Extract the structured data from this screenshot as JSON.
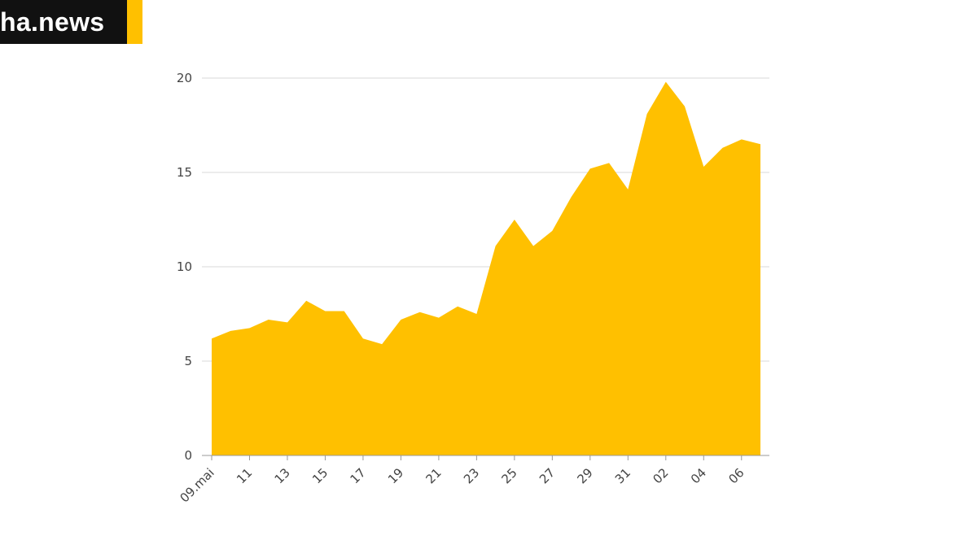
{
  "brand": {
    "text": "ha.news",
    "colors": {
      "box": "#111111",
      "text": "#ffffff",
      "accent": "#FFC000"
    }
  },
  "chart_data": {
    "type": "area",
    "color": "#FFC000",
    "title": "",
    "xlabel": "",
    "ylabel": "",
    "ylim": [
      0,
      20
    ],
    "yticks": [
      0,
      5,
      10,
      15,
      20
    ],
    "grid": true,
    "x": [
      "09.mai",
      "10",
      "11",
      "12",
      "13",
      "14",
      "15",
      "16",
      "17",
      "18",
      "19",
      "20",
      "21",
      "22",
      "23",
      "24",
      "25",
      "26",
      "27",
      "28",
      "29",
      "30",
      "31",
      "01",
      "02",
      "03",
      "04",
      "05",
      "06",
      "07"
    ],
    "xtick_labels": [
      "09.mai",
      "11",
      "13",
      "15",
      "17",
      "19",
      "21",
      "23",
      "25",
      "27",
      "29",
      "31",
      "02",
      "04",
      "06"
    ],
    "values": [
      6.2,
      6.6,
      6.75,
      7.2,
      7.05,
      8.2,
      7.65,
      7.65,
      6.2,
      5.9,
      7.2,
      7.6,
      7.3,
      7.9,
      7.5,
      11.1,
      12.5,
      11.1,
      11.9,
      13.7,
      15.2,
      15.5,
      14.1,
      18.1,
      19.8,
      18.5,
      15.3,
      16.3,
      16.75,
      16.5
    ]
  }
}
